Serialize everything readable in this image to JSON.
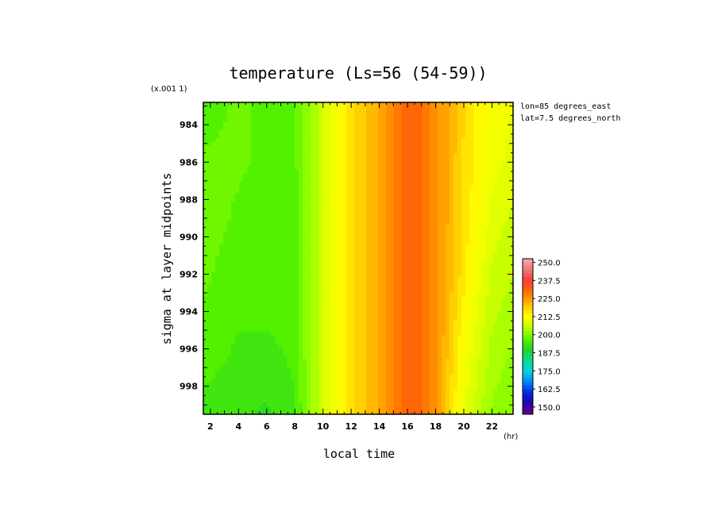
{
  "chart_data": {
    "type": "heatmap",
    "title": "temperature (Ls=56 (54-59))",
    "xlabel": "local time",
    "ylabel": "sigma at layer midpoints",
    "x_unit": "(hr)",
    "y_scale_note": "(x.001 1)",
    "annotations": [
      "lon=85 degrees_east",
      "lat=7.5 degrees_north"
    ],
    "x_ticks": [
      2,
      4,
      6,
      8,
      10,
      12,
      14,
      16,
      18,
      20,
      22
    ],
    "y_ticks": [
      984,
      986,
      988,
      990,
      992,
      994,
      996,
      998
    ],
    "xlim": [
      1.5,
      23.5
    ],
    "ylim": [
      999.5,
      982.8
    ],
    "x": [
      1.5,
      4,
      6,
      8,
      9,
      10,
      11,
      12,
      13,
      14,
      15,
      16,
      17,
      18,
      19,
      20,
      21,
      22,
      23.5
    ],
    "y": [
      982.8,
      986,
      989,
      992,
      995,
      998,
      999.5
    ],
    "z": [
      [
        196,
        198,
        197,
        197,
        202,
        207,
        212,
        217,
        220,
        223,
        228,
        232,
        230,
        226,
        222,
        218,
        214,
        212,
        210
      ],
      [
        198,
        198,
        197,
        197,
        202,
        207,
        212,
        217,
        220,
        223,
        228,
        232,
        230,
        226,
        222,
        217,
        214,
        211,
        209
      ],
      [
        199,
        197,
        195,
        196,
        202,
        207,
        212,
        217,
        220,
        223,
        228,
        232,
        230,
        226,
        222,
        216,
        213,
        209,
        207
      ],
      [
        198,
        196,
        195,
        196,
        202,
        207,
        212,
        217,
        220,
        223,
        228,
        232,
        230,
        226,
        221,
        216,
        211,
        207,
        205
      ],
      [
        197,
        195,
        195,
        196,
        202,
        207,
        212,
        217,
        220,
        223,
        228,
        232,
        230,
        226,
        220,
        213,
        209,
        205,
        203
      ],
      [
        195,
        194,
        193,
        195,
        202,
        207,
        212,
        217,
        220,
        223,
        228,
        232,
        230,
        226,
        218,
        211,
        207,
        203,
        201
      ],
      [
        194,
        193,
        192,
        194,
        202,
        207,
        212,
        217,
        220,
        223,
        228,
        232,
        230,
        226,
        217,
        210,
        205,
        202,
        200
      ]
    ],
    "colorbar": {
      "labels": [
        "250.0",
        "237.5",
        "225.0",
        "212.5",
        "200.0",
        "187.5",
        "175.0",
        "162.5",
        "150.0"
      ],
      "min": 145,
      "max": 252.5,
      "step": 2.5
    }
  }
}
